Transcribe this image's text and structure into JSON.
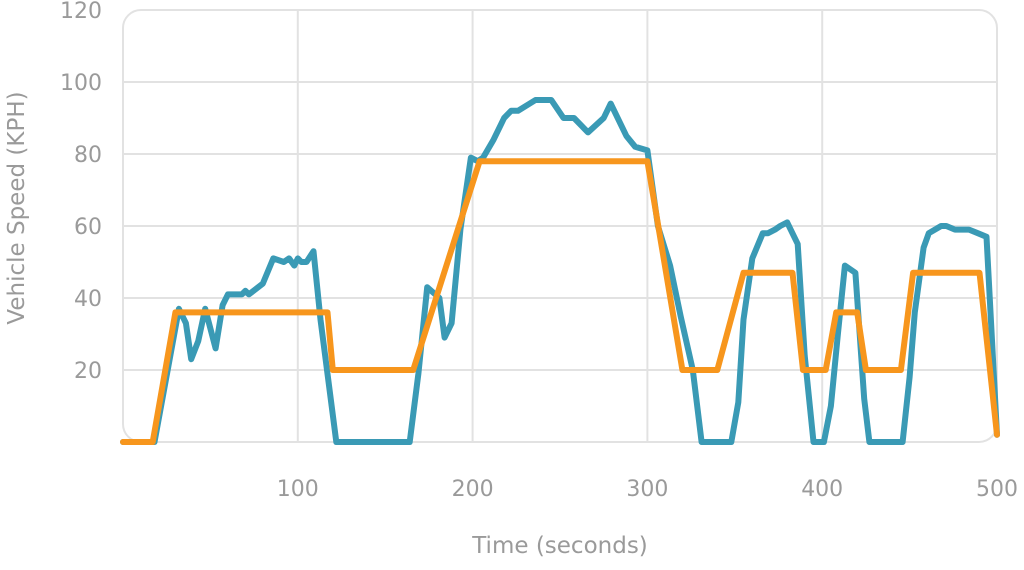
{
  "chart_data": {
    "type": "line",
    "xlabel": "Time (seconds)",
    "ylabel": "Vehicle Speed (KPH)",
    "xlim": [
      0,
      500
    ],
    "ylim": [
      0,
      120
    ],
    "x_ticks": [
      100,
      200,
      300,
      400,
      500
    ],
    "y_ticks": [
      20,
      40,
      60,
      80,
      100,
      120
    ],
    "grid": true,
    "series": [
      {
        "color": "#3a9ab5",
        "points": [
          [
            0,
            0
          ],
          [
            18,
            0
          ],
          [
            32,
            37
          ],
          [
            36,
            33
          ],
          [
            39,
            23
          ],
          [
            43,
            28
          ],
          [
            47,
            37
          ],
          [
            53,
            26
          ],
          [
            57,
            38
          ],
          [
            60,
            41
          ],
          [
            68,
            41
          ],
          [
            70,
            42
          ],
          [
            72,
            41
          ],
          [
            80,
            44
          ],
          [
            86,
            51
          ],
          [
            92,
            50
          ],
          [
            95,
            51
          ],
          [
            98,
            49
          ],
          [
            100,
            51
          ],
          [
            102,
            50
          ],
          [
            105,
            50
          ],
          [
            109,
            53
          ],
          [
            113,
            34
          ],
          [
            122,
            0
          ],
          [
            164,
            0
          ],
          [
            169,
            19
          ],
          [
            174,
            43
          ],
          [
            181,
            40
          ],
          [
            184,
            29
          ],
          [
            188,
            33
          ],
          [
            193,
            59
          ],
          [
            199,
            79
          ],
          [
            203,
            78
          ],
          [
            206,
            79
          ],
          [
            212,
            84
          ],
          [
            218,
            90
          ],
          [
            222,
            92
          ],
          [
            226,
            92
          ],
          [
            236,
            95
          ],
          [
            245,
            95
          ],
          [
            252,
            90
          ],
          [
            258,
            90
          ],
          [
            266,
            86
          ],
          [
            275,
            90
          ],
          [
            279,
            94
          ],
          [
            288,
            85
          ],
          [
            293,
            82
          ],
          [
            300,
            81
          ],
          [
            306,
            60
          ],
          [
            313,
            49
          ],
          [
            319,
            35
          ],
          [
            326,
            20
          ],
          [
            331,
            0
          ],
          [
            348,
            0
          ],
          [
            352,
            11
          ],
          [
            355,
            34
          ],
          [
            360,
            51
          ],
          [
            366,
            58
          ],
          [
            369,
            58
          ],
          [
            373,
            59
          ],
          [
            376,
            60
          ],
          [
            380,
            61
          ],
          [
            386,
            55
          ],
          [
            390,
            24
          ],
          [
            395,
            0
          ],
          [
            401,
            0
          ],
          [
            405,
            10
          ],
          [
            409,
            30
          ],
          [
            413,
            49
          ],
          [
            419,
            47
          ],
          [
            424,
            12
          ],
          [
            427,
            0
          ],
          [
            446,
            0
          ],
          [
            450,
            18
          ],
          [
            453,
            36
          ],
          [
            458,
            54
          ],
          [
            461,
            58
          ],
          [
            468,
            60
          ],
          [
            471,
            60
          ],
          [
            476,
            59
          ],
          [
            484,
            59
          ],
          [
            489,
            58
          ],
          [
            494,
            57
          ],
          [
            500,
            2
          ]
        ]
      },
      {
        "color": "#f7961d",
        "points": [
          [
            0,
            0
          ],
          [
            17,
            0
          ],
          [
            30,
            36
          ],
          [
            117,
            36
          ],
          [
            120,
            20
          ],
          [
            166,
            20
          ],
          [
            204,
            78
          ],
          [
            300,
            78
          ],
          [
            320,
            20
          ],
          [
            340,
            20
          ],
          [
            355,
            47
          ],
          [
            383,
            47
          ],
          [
            389,
            20
          ],
          [
            402,
            20
          ],
          [
            408,
            36
          ],
          [
            420,
            36
          ],
          [
            425,
            20
          ],
          [
            445,
            20
          ],
          [
            452,
            47
          ],
          [
            490,
            47
          ],
          [
            500,
            2
          ]
        ]
      }
    ]
  }
}
